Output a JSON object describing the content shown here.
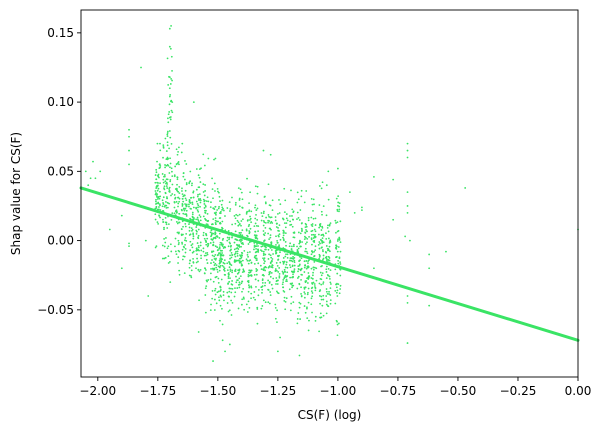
{
  "chart_data": {
    "type": "scatter",
    "xlabel": "CS(F) (log)",
    "ylabel": "Shap value for CS(F)",
    "xlim": [
      -2.07,
      0.0
    ],
    "ylim": [
      -0.0985,
      0.1665
    ],
    "x_ticks": [
      -2.0,
      -1.75,
      -1.5,
      -1.25,
      -1.0,
      -0.75,
      -0.5,
      -0.25,
      0.0
    ],
    "x_tick_labels": [
      "−2.00",
      "−1.75",
      "−1.50",
      "−1.25",
      "−1.00",
      "−0.75",
      "−0.50",
      "−0.25",
      "0.00"
    ],
    "y_ticks": [
      -0.05,
      0.0,
      0.05,
      0.1,
      0.15
    ],
    "y_tick_labels": [
      "−0.05",
      "0.00",
      "0.05",
      "0.10",
      "0.15"
    ],
    "grid": false,
    "legend": "none",
    "point_color": "#3ae465",
    "fit_line": {
      "color": "#3ae465",
      "x": [
        -2.07,
        0.0
      ],
      "y": [
        0.038,
        -0.072
      ]
    },
    "clusters": [
      {
        "x": -1.75,
        "y_min": -0.005,
        "y_max": 0.07
      },
      {
        "x": -1.72,
        "y_min": -0.025,
        "y_max": 0.085
      },
      {
        "x": -1.7,
        "y_min": -0.03,
        "y_max": 0.155
      },
      {
        "x": -1.67,
        "y_min": -0.03,
        "y_max": 0.075
      },
      {
        "x": -1.64,
        "y_min": -0.035,
        "y_max": 0.07
      },
      {
        "x": -1.61,
        "y_min": -0.04,
        "y_max": 0.065
      },
      {
        "x": -1.58,
        "y_min": -0.05,
        "y_max": 0.065
      },
      {
        "x": -1.55,
        "y_min": -0.05,
        "y_max": 0.07
      },
      {
        "x": -1.52,
        "y_min": -0.055,
        "y_max": 0.06
      },
      {
        "x": -1.5,
        "y_min": -0.06,
        "y_max": 0.05
      },
      {
        "x": -1.48,
        "y_min": -0.07,
        "y_max": 0.045
      },
      {
        "x": -1.45,
        "y_min": -0.065,
        "y_max": 0.04
      },
      {
        "x": -1.42,
        "y_min": -0.065,
        "y_max": 0.045
      },
      {
        "x": -1.4,
        "y_min": -0.06,
        "y_max": 0.04
      },
      {
        "x": -1.37,
        "y_min": -0.065,
        "y_max": 0.045
      },
      {
        "x": -1.34,
        "y_min": -0.06,
        "y_max": 0.045
      },
      {
        "x": -1.31,
        "y_min": -0.06,
        "y_max": 0.045
      },
      {
        "x": -1.28,
        "y_min": -0.065,
        "y_max": 0.05
      },
      {
        "x": -1.25,
        "y_min": -0.07,
        "y_max": 0.045
      },
      {
        "x": -1.22,
        "y_min": -0.065,
        "y_max": 0.045
      },
      {
        "x": -1.19,
        "y_min": -0.065,
        "y_max": 0.045
      },
      {
        "x": -1.16,
        "y_min": -0.075,
        "y_max": 0.045
      },
      {
        "x": -1.13,
        "y_min": -0.07,
        "y_max": 0.045
      },
      {
        "x": -1.1,
        "y_min": -0.07,
        "y_max": 0.045
      },
      {
        "x": -1.07,
        "y_min": -0.07,
        "y_max": 0.045
      },
      {
        "x": -1.04,
        "y_min": -0.075,
        "y_max": 0.04
      },
      {
        "x": -1.0,
        "y_min": -0.07,
        "y_max": 0.05
      }
    ],
    "points": [
      [
        -2.05,
        0.05
      ],
      [
        -2.04,
        0.04
      ],
      [
        -2.03,
        0.045
      ],
      [
        -2.02,
        0.057
      ],
      [
        -2.01,
        0.045
      ],
      [
        -1.99,
        0.05
      ],
      [
        -1.95,
        0.008
      ],
      [
        -1.9,
        -0.02
      ],
      [
        -1.9,
        0.018
      ],
      [
        -1.87,
        0.08
      ],
      [
        -1.87,
        0.075
      ],
      [
        -1.87,
        0.065
      ],
      [
        -1.87,
        0.055
      ],
      [
        -1.87,
        -0.002
      ],
      [
        -1.87,
        -0.004
      ],
      [
        -1.82,
        0.125
      ],
      [
        -1.79,
        -0.04
      ],
      [
        -1.8,
        0.0
      ],
      [
        -1.7,
        0.153
      ],
      [
        -1.7,
        0.14
      ],
      [
        -1.7,
        0.118
      ],
      [
        -1.7,
        0.11
      ],
      [
        -1.7,
        0.104
      ],
      [
        -1.69,
        0.1
      ],
      [
        -1.6,
        0.1
      ],
      [
        -1.58,
        -0.066
      ],
      [
        -1.55,
        -0.052
      ],
      [
        -1.52,
        -0.087
      ],
      [
        -1.47,
        -0.08
      ],
      [
        -1.45,
        -0.075
      ],
      [
        -1.48,
        -0.072
      ],
      [
        -1.31,
        0.065
      ],
      [
        -1.28,
        0.062
      ],
      [
        -1.25,
        -0.08
      ],
      [
        -1.16,
        -0.083
      ],
      [
        -1.04,
        0.05
      ],
      [
        -1.0,
        0.052
      ],
      [
        -0.95,
        0.035
      ],
      [
        -0.93,
        0.02
      ],
      [
        -0.9,
        0.022
      ],
      [
        -0.9,
        0.024
      ],
      [
        -0.85,
        0.046
      ],
      [
        -0.85,
        -0.02
      ],
      [
        -0.77,
        0.044
      ],
      [
        -0.77,
        0.015
      ],
      [
        -0.71,
        0.07
      ],
      [
        -0.71,
        0.065
      ],
      [
        -0.71,
        0.06
      ],
      [
        -0.71,
        0.035
      ],
      [
        -0.71,
        0.025
      ],
      [
        -0.71,
        0.02
      ],
      [
        -0.71,
        -0.04
      ],
      [
        -0.71,
        -0.045
      ],
      [
        -0.71,
        -0.074
      ],
      [
        -0.7,
        0.0
      ],
      [
        -0.62,
        -0.01
      ],
      [
        -0.62,
        -0.02
      ],
      [
        -0.62,
        -0.047
      ],
      [
        -0.55,
        -0.008
      ],
      [
        -0.47,
        0.038
      ],
      [
        0.0,
        0.008
      ],
      [
        -0.72,
        0.003
      ]
    ]
  }
}
